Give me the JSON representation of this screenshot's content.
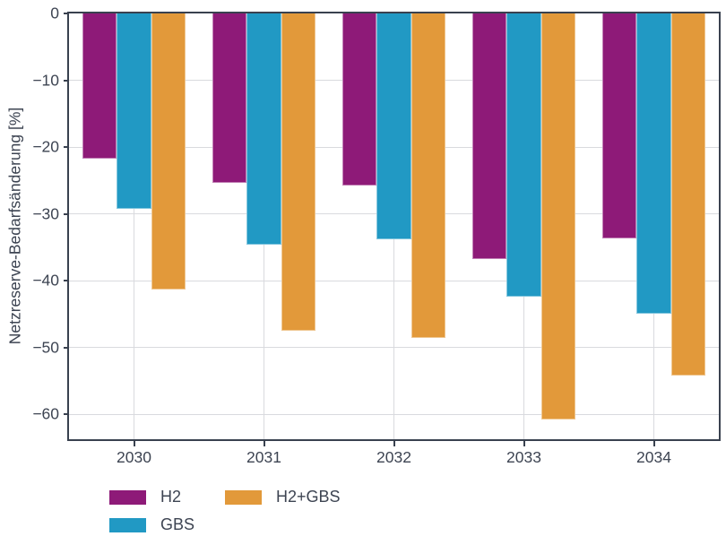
{
  "chart_data": {
    "type": "bar",
    "orientation": "vertical",
    "title": "",
    "xlabel": "",
    "ylabel": "Netzreserve-Bedarfsänderung [%]",
    "categories": [
      "2030",
      "2031",
      "2032",
      "2033",
      "2034"
    ],
    "series": [
      {
        "name": "H2",
        "color": "#8e1a78",
        "values": [
          -21.7,
          -25.3,
          -25.8,
          -36.8,
          -33.6
        ]
      },
      {
        "name": "GBS",
        "color": "#2199c4",
        "values": [
          -29.2,
          -34.6,
          -33.8,
          -42.4,
          -44.9
        ]
      },
      {
        "name": "H2+GBS",
        "color": "#e2993a",
        "values": [
          -41.3,
          -47.5,
          -48.6,
          -60.7,
          -54.2
        ]
      }
    ],
    "yticks": [
      0,
      -10,
      -20,
      -30,
      -40,
      -50,
      -60
    ],
    "ytick_labels": [
      "0",
      "−10",
      "−20",
      "−30",
      "−40",
      "−50",
      "−60"
    ],
    "ylim": [
      -63.7,
      0
    ],
    "grid": true,
    "legend_position": "bottom-left",
    "legend_rows": 2
  },
  "colors": {
    "spine": "#39414f",
    "grid": "#d9dade",
    "text": "#3d4452",
    "background": "#ffffff"
  }
}
